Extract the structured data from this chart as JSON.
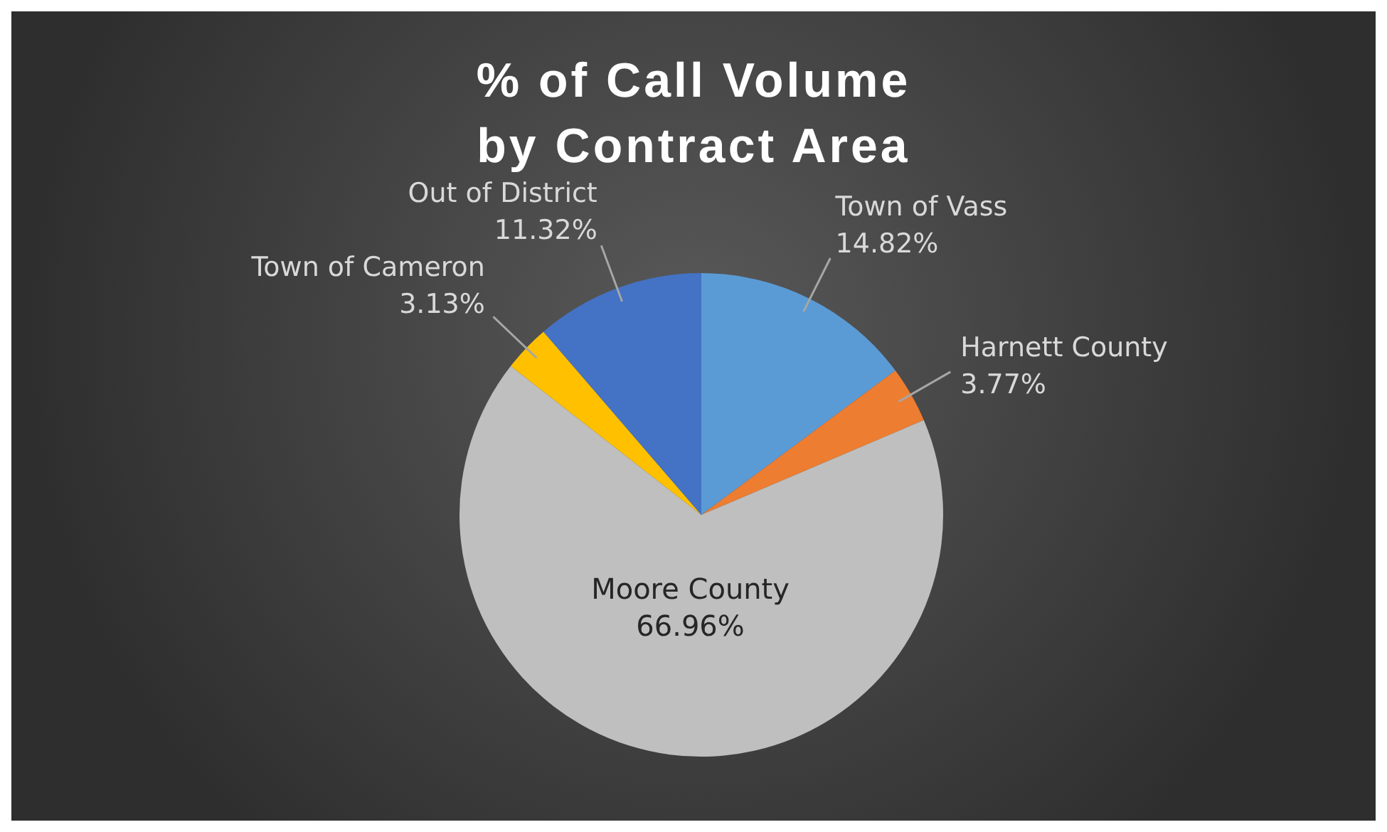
{
  "chart_data": {
    "type": "pie",
    "title": "% of Call Volume by Contract Area",
    "categories": [
      "Town of Vass",
      "Harnett County",
      "Moore County",
      "Town of Cameron",
      "Out of District"
    ],
    "values": [
      14.82,
      3.77,
      66.96,
      3.13,
      11.32
    ],
    "colors": [
      "#5b9bd5",
      "#ed7d31",
      "#bfbfbf",
      "#ffc000",
      "#4472c4"
    ],
    "value_labels": [
      "14.82%",
      "3.77%",
      "66.96%",
      "3.13%",
      "11.32%"
    ]
  }
}
